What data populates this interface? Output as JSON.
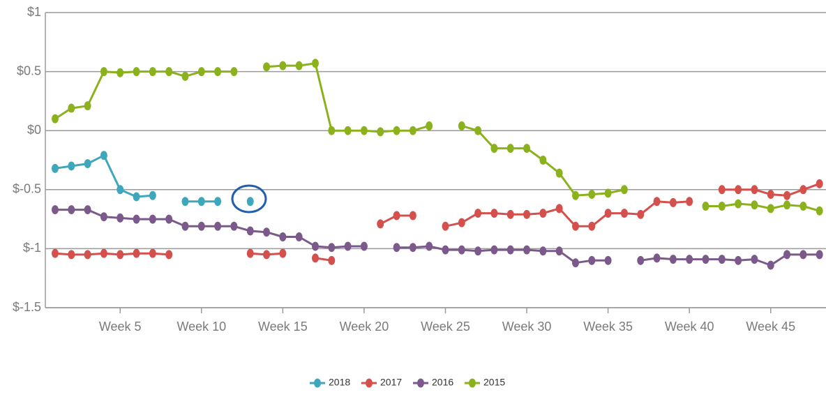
{
  "chart_data": {
    "type": "line",
    "x": [
      1,
      2,
      3,
      4,
      5,
      6,
      7,
      8,
      9,
      10,
      11,
      12,
      13,
      14,
      15,
      16,
      17,
      18,
      19,
      20,
      21,
      22,
      23,
      24,
      25,
      26,
      27,
      28,
      29,
      30,
      31,
      32,
      33,
      34,
      35,
      36,
      37,
      38,
      39,
      40,
      41,
      42,
      43,
      44,
      45,
      46,
      47,
      48
    ],
    "xlim": [
      0.4,
      48.4
    ],
    "xticks": [
      {
        "value": 5,
        "label": "Week 5"
      },
      {
        "value": 10,
        "label": "Week 10"
      },
      {
        "value": 15,
        "label": "Week 15"
      },
      {
        "value": 20,
        "label": "Week 20"
      },
      {
        "value": 25,
        "label": "Week 25"
      },
      {
        "value": 30,
        "label": "Week 30"
      },
      {
        "value": 35,
        "label": "Week 35"
      },
      {
        "value": 40,
        "label": "Week 40"
      },
      {
        "value": 45,
        "label": "Week 45"
      }
    ],
    "ylim": [
      -1.5,
      1
    ],
    "yticks": [
      {
        "value": -1.5,
        "label": "$-1.5"
      },
      {
        "value": -1,
        "label": "$-1"
      },
      {
        "value": -0.5,
        "label": "$-0.5"
      },
      {
        "value": 0,
        "label": "$0"
      },
      {
        "value": 0.5,
        "label": "$0.5"
      },
      {
        "value": 1,
        "label": "$1"
      }
    ],
    "grid": true,
    "legend": "bottom",
    "series": [
      {
        "name": "2018",
        "color": "#3fa7bb",
        "values": [
          -0.32,
          -0.3,
          -0.28,
          -0.21,
          -0.5,
          -0.56,
          -0.55,
          null,
          -0.6,
          -0.6,
          -0.6,
          null,
          -0.6,
          null,
          null,
          null,
          null,
          null,
          null,
          null,
          null,
          null,
          null,
          null,
          null,
          null,
          null,
          null,
          null,
          null,
          null,
          null,
          null,
          null,
          null,
          null,
          null,
          null,
          null,
          null,
          null,
          null,
          null,
          null,
          null,
          null,
          null,
          null
        ]
      },
      {
        "name": "2017",
        "color": "#d4504c",
        "values": [
          -1.04,
          -1.05,
          -1.05,
          -1.04,
          -1.05,
          -1.04,
          -1.04,
          -1.05,
          null,
          null,
          null,
          null,
          -1.04,
          -1.05,
          -1.04,
          null,
          -1.08,
          -1.1,
          null,
          null,
          -0.79,
          -0.72,
          -0.72,
          null,
          -0.81,
          -0.78,
          -0.7,
          -0.7,
          -0.71,
          -0.71,
          -0.7,
          -0.66,
          -0.81,
          -0.81,
          -0.7,
          -0.7,
          -0.71,
          -0.6,
          -0.61,
          -0.6,
          null,
          -0.5,
          -0.5,
          -0.5,
          -0.54,
          -0.55,
          -0.5,
          -0.45
        ]
      },
      {
        "name": "2016",
        "color": "#7b5a8b",
        "values": [
          -0.67,
          -0.67,
          -0.67,
          -0.73,
          -0.74,
          -0.75,
          -0.75,
          -0.75,
          -0.81,
          -0.81,
          -0.81,
          -0.81,
          -0.85,
          -0.86,
          -0.9,
          -0.9,
          -0.98,
          -0.99,
          -0.98,
          -0.98,
          null,
          -0.99,
          -0.99,
          -0.98,
          -1.01,
          -1.01,
          -1.02,
          -1.01,
          -1.01,
          -1.01,
          -1.02,
          -1.02,
          -1.12,
          -1.1,
          -1.1,
          null,
          -1.1,
          -1.08,
          -1.09,
          -1.09,
          -1.09,
          -1.09,
          -1.1,
          -1.09,
          -1.14,
          -1.05,
          -1.05,
          -1.05
        ]
      },
      {
        "name": "2015",
        "color": "#8bb21d",
        "values": [
          0.1,
          0.19,
          0.21,
          0.5,
          0.49,
          0.5,
          0.5,
          0.5,
          0.46,
          0.5,
          0.5,
          0.5,
          null,
          0.54,
          0.55,
          0.55,
          0.57,
          0,
          0,
          0,
          -0.01,
          0,
          0,
          0.04,
          null,
          0.04,
          0,
          -0.15,
          -0.15,
          -0.15,
          -0.25,
          -0.36,
          -0.55,
          -0.54,
          -0.53,
          -0.5,
          null,
          null,
          null,
          null,
          -0.64,
          -0.64,
          -0.62,
          -0.63,
          -0.66,
          -0.63,
          -0.64,
          -0.68
        ]
      }
    ]
  }
}
